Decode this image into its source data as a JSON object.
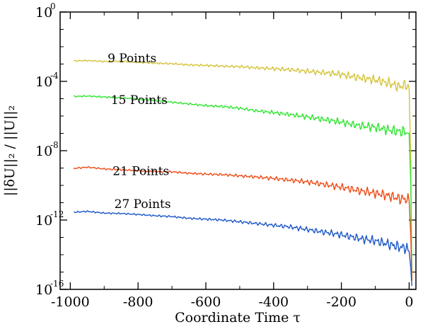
{
  "chart_data": {
    "type": "line",
    "xlabel": "Coordinate Time τ",
    "ylabel": "||δU||₂ / ||U||₂",
    "xlim": [
      -1030,
      20
    ],
    "ylim_log10": [
      -16,
      0
    ],
    "y_scale": "log",
    "grid": false,
    "x_ticks": [
      -1000,
      -800,
      -600,
      -400,
      -200,
      0
    ],
    "x_tick_labels": [
      "-1000",
      "-800",
      "-600",
      "-400",
      "-200",
      "0"
    ],
    "y_ticks_exponents": [
      0,
      -4,
      -8,
      -12,
      -16
    ],
    "y_tick_base": "10",
    "y_tick_sup": [
      "0",
      "-4",
      "-8",
      "-12",
      "-16"
    ],
    "series": [
      {
        "name": "9 Points",
        "color": "#d4c43a",
        "label_at": [
          -890,
          -2.9
        ],
        "points_log10": [
          [
            -990,
            -2.82
          ],
          [
            -950,
            -2.8
          ],
          [
            -900,
            -2.85
          ],
          [
            -850,
            -2.84
          ],
          [
            -800,
            -2.9
          ],
          [
            -750,
            -2.95
          ],
          [
            -700,
            -2.98
          ],
          [
            -650,
            -3.05
          ],
          [
            -600,
            -3.08
          ],
          [
            -550,
            -3.12
          ],
          [
            -500,
            -3.15
          ],
          [
            -450,
            -3.22
          ],
          [
            -400,
            -3.27
          ],
          [
            -350,
            -3.33
          ],
          [
            -300,
            -3.42
          ],
          [
            -250,
            -3.5
          ],
          [
            -200,
            -3.6
          ],
          [
            -150,
            -3.78
          ],
          [
            -100,
            -3.92
          ],
          [
            -60,
            -4.1
          ],
          [
            -30,
            -4.3
          ],
          [
            -10,
            -4.2
          ],
          [
            0,
            -4.4
          ],
          [
            5,
            -9.0
          ],
          [
            8,
            -15.5
          ]
        ]
      },
      {
        "name": "15 Points",
        "color": "#2ee52e",
        "label_at": [
          -880,
          -5.3
        ],
        "points_log10": [
          [
            -990,
            -4.87
          ],
          [
            -950,
            -4.85
          ],
          [
            -900,
            -4.9
          ],
          [
            -850,
            -4.95
          ],
          [
            -800,
            -5.02
          ],
          [
            -750,
            -5.1
          ],
          [
            -700,
            -5.2
          ],
          [
            -650,
            -5.3
          ],
          [
            -600,
            -5.4
          ],
          [
            -550,
            -5.45
          ],
          [
            -500,
            -5.55
          ],
          [
            -450,
            -5.7
          ],
          [
            -400,
            -5.8
          ],
          [
            -350,
            -5.92
          ],
          [
            -300,
            -6.05
          ],
          [
            -250,
            -6.2
          ],
          [
            -200,
            -6.35
          ],
          [
            -150,
            -6.55
          ],
          [
            -100,
            -6.65
          ],
          [
            -60,
            -6.8
          ],
          [
            -30,
            -6.9
          ],
          [
            -10,
            -6.9
          ],
          [
            0,
            -7.0
          ],
          [
            5,
            -10.0
          ],
          [
            8,
            -15.5
          ]
        ]
      },
      {
        "name": "21 Points",
        "color": "#f04a14",
        "label_at": [
          -875,
          -9.4
        ],
        "points_log10": [
          [
            -990,
            -9.02
          ],
          [
            -950,
            -8.95
          ],
          [
            -900,
            -9.05
          ],
          [
            -850,
            -9.1
          ],
          [
            -800,
            -9.15
          ],
          [
            -750,
            -9.2
          ],
          [
            -700,
            -9.22
          ],
          [
            -650,
            -9.3
          ],
          [
            -600,
            -9.35
          ],
          [
            -550,
            -9.38
          ],
          [
            -500,
            -9.45
          ],
          [
            -450,
            -9.52
          ],
          [
            -400,
            -9.6
          ],
          [
            -350,
            -9.7
          ],
          [
            -300,
            -9.8
          ],
          [
            -250,
            -9.95
          ],
          [
            -200,
            -10.1
          ],
          [
            -150,
            -10.3
          ],
          [
            -100,
            -10.45
          ],
          [
            -60,
            -10.6
          ],
          [
            -30,
            -10.75
          ],
          [
            -10,
            -10.8
          ],
          [
            0,
            -10.9
          ],
          [
            5,
            -13.0
          ],
          [
            8,
            -15.5
          ]
        ]
      },
      {
        "name": "27 Points",
        "color": "#1c57c8",
        "label_at": [
          -870,
          -11.3
        ],
        "points_log10": [
          [
            -990,
            -11.55
          ],
          [
            -950,
            -11.5
          ],
          [
            -900,
            -11.6
          ],
          [
            -850,
            -11.62
          ],
          [
            -800,
            -11.68
          ],
          [
            -750,
            -11.75
          ],
          [
            -700,
            -11.8
          ],
          [
            -650,
            -11.9
          ],
          [
            -600,
            -11.95
          ],
          [
            -550,
            -12.0
          ],
          [
            -500,
            -12.1
          ],
          [
            -450,
            -12.2
          ],
          [
            -400,
            -12.3
          ],
          [
            -350,
            -12.4
          ],
          [
            -300,
            -12.55
          ],
          [
            -250,
            -12.7
          ],
          [
            -200,
            -12.85
          ],
          [
            -150,
            -13.05
          ],
          [
            -100,
            -13.2
          ],
          [
            -60,
            -13.4
          ],
          [
            -30,
            -13.55
          ],
          [
            -10,
            -13.6
          ],
          [
            0,
            -13.8
          ],
          [
            5,
            -14.8
          ],
          [
            8,
            -15.8
          ]
        ]
      }
    ]
  }
}
